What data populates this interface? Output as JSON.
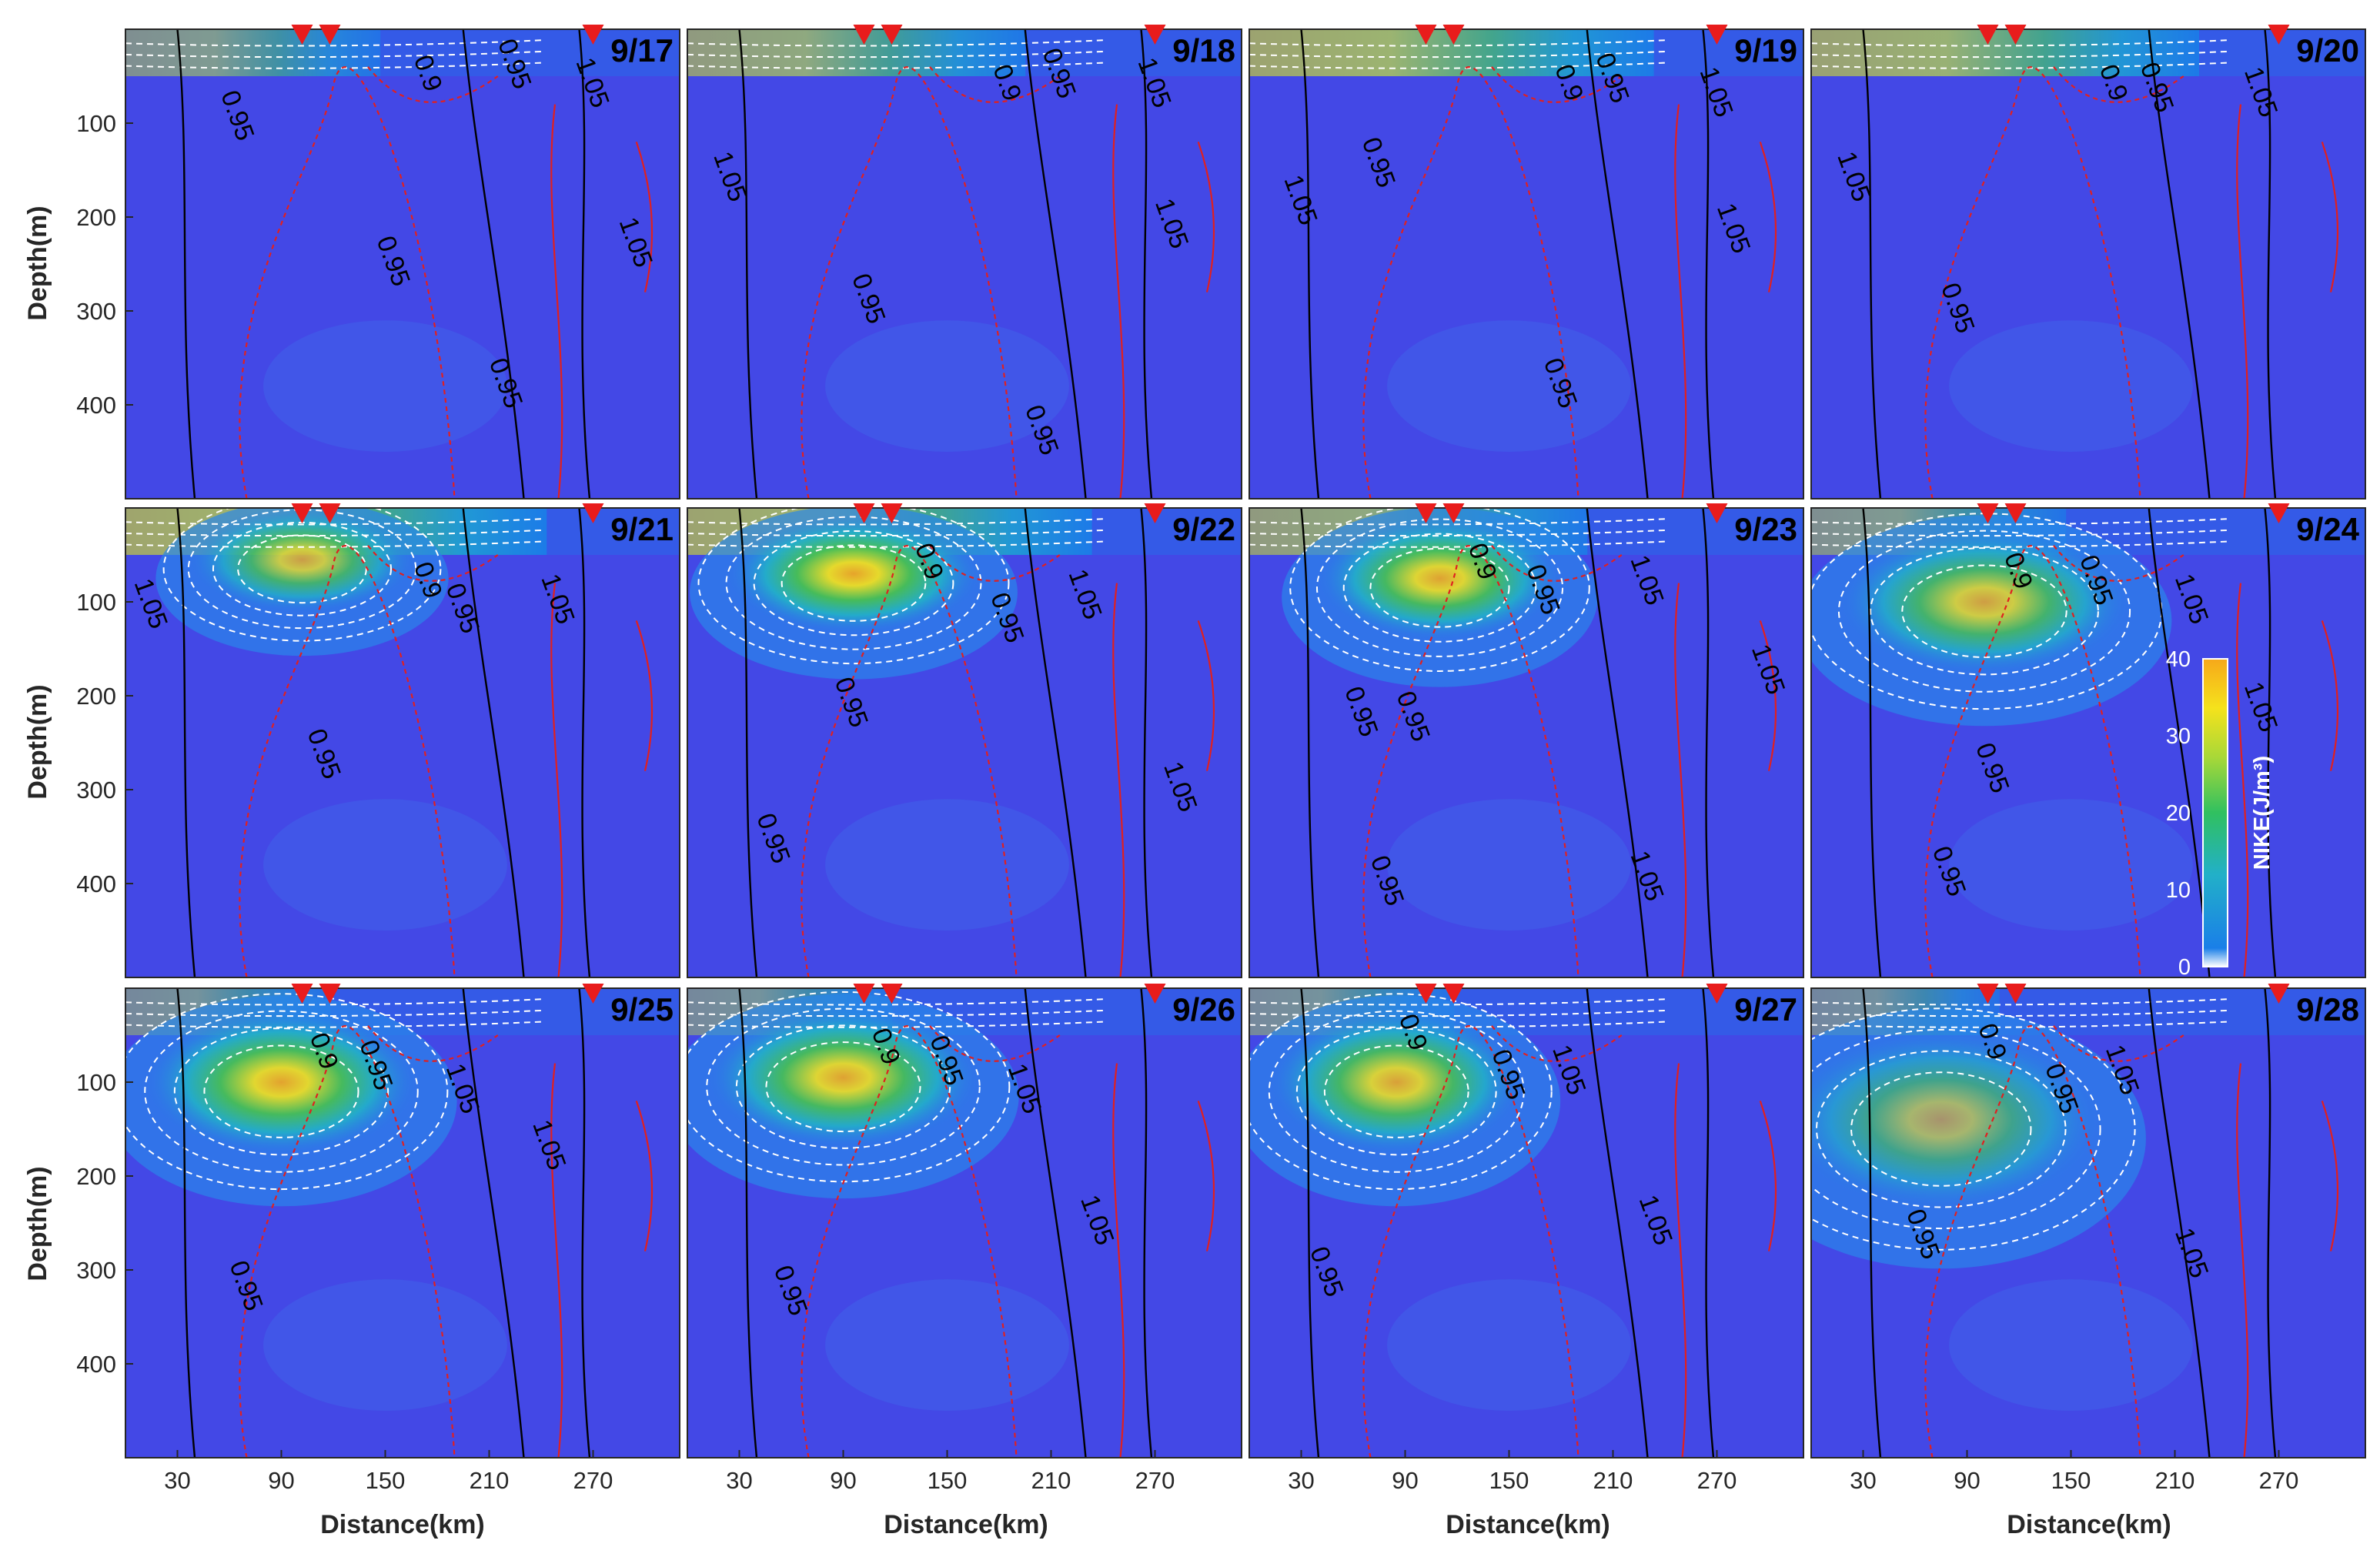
{
  "figure": {
    "x_axis_label": "Distance(km)",
    "y_axis_label": "Depth(m)",
    "colorbar": {
      "label": "NIKE(J/m³)",
      "ticks": [
        "0",
        "10",
        "20",
        "30",
        "40"
      ],
      "range": [
        0,
        40
      ],
      "colors": [
        "#ffffff",
        "#1a7fe8",
        "#22b0c8",
        "#30c060",
        "#a8d838",
        "#f5e21c",
        "#f6a81a"
      ]
    },
    "colors": {
      "background_field": "#4348e6",
      "contour_red": "#e02020",
      "contour_black": "#000000",
      "contour_white": "#ffffff",
      "marker": "#e81c1c"
    }
  },
  "chart_data": {
    "type": "heatmap",
    "xlabel": "Distance(km)",
    "ylabel": "Depth(m)",
    "xlim": [
      0,
      320
    ],
    "ylim": [
      500,
      0
    ],
    "x_ticks": [
      "30",
      "90",
      "150",
      "210",
      "270"
    ],
    "y_ticks": [
      "100",
      "200",
      "300",
      "400"
    ],
    "contour_labels": [
      "0.9",
      "0.95",
      "1.05"
    ],
    "marker_distances_km": [
      102,
      118,
      270
    ],
    "panels": [
      {
        "date": "9/17",
        "core": null,
        "surface_strength": 0.35,
        "labels": [
          [
            "0.95",
            60,
            95
          ],
          [
            "0.9",
            170,
            50
          ],
          [
            "0.95",
            220,
            40
          ],
          [
            "1.05",
            265,
            60
          ],
          [
            "0.95",
            150,
            250
          ],
          [
            "0.95",
            215,
            380
          ],
          [
            "1.05",
            290,
            230
          ]
        ]
      },
      {
        "date": "9/18",
        "core": null,
        "surface_strength": 0.6,
        "labels": [
          [
            "0.9",
            180,
            60
          ],
          [
            "0.95",
            210,
            50
          ],
          [
            "1.05",
            265,
            60
          ],
          [
            "1.05",
            20,
            160
          ],
          [
            "0.95",
            100,
            290
          ],
          [
            "0.95",
            200,
            430
          ],
          [
            "1.05",
            275,
            210
          ]
        ]
      },
      {
        "date": "9/19",
        "core": null,
        "surface_strength": 0.8,
        "labels": [
          [
            "0.9",
            180,
            60
          ],
          [
            "0.95",
            205,
            55
          ],
          [
            "1.05",
            265,
            70
          ],
          [
            "1.05",
            25,
            185
          ],
          [
            "0.95",
            70,
            145
          ],
          [
            "0.95",
            175,
            380
          ],
          [
            "1.05",
            275,
            215
          ]
        ]
      },
      {
        "date": "9/20",
        "core": null,
        "surface_strength": 0.75,
        "labels": [
          [
            "0.9",
            170,
            60
          ],
          [
            "0.95",
            195,
            65
          ],
          [
            "1.05",
            255,
            70
          ],
          [
            "1.05",
            20,
            160
          ],
          [
            "0.95",
            80,
            300
          ]
        ]
      },
      {
        "date": "9/21",
        "core": [
          102,
          55,
          25,
          0.78
        ],
        "surface_strength": 0.85,
        "labels": [
          [
            "0.9",
            170,
            80
          ],
          [
            "0.95",
            190,
            110
          ],
          [
            "1.05",
            245,
            100
          ],
          [
            "1.05",
            10,
            105
          ],
          [
            "0.95",
            110,
            265
          ]
        ]
      },
      {
        "date": "9/22",
        "core": [
          96,
          70,
          28,
          0.92
        ],
        "surface_strength": 0.8,
        "labels": [
          [
            "0.9",
            135,
            60
          ],
          [
            "0.95",
            180,
            120
          ],
          [
            "1.05",
            225,
            95
          ],
          [
            "0.95",
            90,
            210
          ],
          [
            "0.95",
            45,
            355
          ],
          [
            "1.05",
            280,
            300
          ]
        ]
      },
      {
        "date": "9/23",
        "core": [
          110,
          75,
          27,
          0.88
        ],
        "surface_strength": 0.6,
        "labels": [
          [
            "0.9",
            130,
            60
          ],
          [
            "0.95",
            165,
            90
          ],
          [
            "1.05",
            225,
            80
          ],
          [
            "0.95",
            60,
            220
          ],
          [
            "0.95",
            90,
            225
          ],
          [
            "1.05",
            295,
            175
          ],
          [
            "0.95",
            75,
            400
          ],
          [
            "1.05",
            225,
            395
          ]
        ]
      },
      {
        "date": "9/24",
        "core": [
          100,
          100,
          32,
          0.8
        ],
        "surface_strength": 0.35,
        "labels": [
          [
            "0.9",
            115,
            70
          ],
          [
            "0.95",
            160,
            80
          ],
          [
            "1.05",
            215,
            100
          ],
          [
            "1.05",
            255,
            215
          ],
          [
            "0.95",
            100,
            280
          ],
          [
            "0.95",
            75,
            390
          ]
        ]
      },
      {
        "date": "9/25",
        "core": [
          90,
          100,
          30,
          0.9
        ],
        "surface_strength": 0.2,
        "labels": [
          [
            "0.9",
            110,
            70
          ],
          [
            "0.95",
            140,
            85
          ],
          [
            "1.05",
            190,
            110
          ],
          [
            "1.05",
            240,
            170
          ],
          [
            "0.95",
            65,
            320
          ]
        ]
      },
      {
        "date": "9/26",
        "core": [
          90,
          95,
          30,
          0.88
        ],
        "surface_strength": 0.2,
        "labels": [
          [
            "0.9",
            110,
            65
          ],
          [
            "0.95",
            145,
            80
          ],
          [
            "1.05",
            190,
            110
          ],
          [
            "1.05",
            232,
            250
          ],
          [
            "0.95",
            55,
            325
          ]
        ]
      },
      {
        "date": "9/27",
        "core": [
          85,
          100,
          28,
          0.85
        ],
        "surface_strength": 0.2,
        "labels": [
          [
            "0.9",
            90,
            50
          ],
          [
            "0.95",
            145,
            95
          ],
          [
            "1.05",
            180,
            90
          ],
          [
            "1.05",
            230,
            250
          ],
          [
            "0.95",
            40,
            305
          ]
        ]
      },
      {
        "date": "9/28",
        "core": [
          75,
          140,
          35,
          0.6
        ],
        "surface_strength": 0.15,
        "labels": [
          [
            "0.9",
            100,
            60
          ],
          [
            "0.95",
            140,
            110
          ],
          [
            "1.05",
            175,
            90
          ],
          [
            "0.95",
            60,
            265
          ],
          [
            "1.05",
            215,
            285
          ]
        ]
      }
    ]
  }
}
